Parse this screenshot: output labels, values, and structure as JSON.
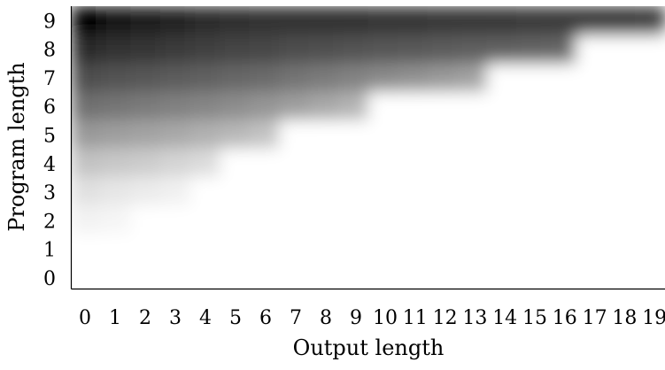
{
  "chart_data": {
    "type": "heatmap",
    "title": "",
    "xlabel": "Output length",
    "ylabel": "Program length",
    "x_categories": [
      "0",
      "1",
      "2",
      "3",
      "4",
      "5",
      "6",
      "7",
      "8",
      "9",
      "10",
      "11",
      "12",
      "13",
      "14",
      "15",
      "16",
      "17",
      "18",
      "19"
    ],
    "y_categories": [
      "0",
      "1",
      "2",
      "3",
      "4",
      "5",
      "6",
      "7",
      "8",
      "9"
    ],
    "value_range": [
      0,
      1
    ],
    "colormap": "white-to-black (darker = higher value)",
    "smoothed": true,
    "values": [
      [
        0,
        0,
        0,
        0,
        0,
        0,
        0,
        0,
        0,
        0,
        0,
        0,
        0,
        0,
        0,
        0,
        0,
        0,
        0,
        0
      ],
      [
        0,
        0,
        0,
        0,
        0,
        0,
        0,
        0,
        0,
        0,
        0,
        0,
        0,
        0,
        0,
        0,
        0,
        0,
        0,
        0
      ],
      [
        0.05,
        0.04,
        0,
        0,
        0,
        0,
        0,
        0,
        0,
        0,
        0,
        0,
        0,
        0,
        0,
        0,
        0,
        0,
        0,
        0
      ],
      [
        0.12,
        0.1,
        0.08,
        0.06,
        0,
        0,
        0,
        0,
        0,
        0,
        0,
        0,
        0,
        0,
        0,
        0,
        0,
        0,
        0,
        0
      ],
      [
        0.24,
        0.22,
        0.2,
        0.17,
        0.14,
        0,
        0,
        0,
        0,
        0,
        0,
        0,
        0,
        0,
        0,
        0,
        0,
        0,
        0,
        0
      ],
      [
        0.4,
        0.38,
        0.36,
        0.34,
        0.31,
        0.28,
        0.24,
        0,
        0,
        0,
        0,
        0,
        0,
        0,
        0,
        0,
        0,
        0,
        0,
        0
      ],
      [
        0.56,
        0.54,
        0.52,
        0.5,
        0.48,
        0.45,
        0.42,
        0.38,
        0.34,
        0.3,
        0,
        0,
        0,
        0,
        0,
        0,
        0,
        0,
        0,
        0
      ],
      [
        0.7,
        0.68,
        0.66,
        0.64,
        0.62,
        0.6,
        0.58,
        0.55,
        0.52,
        0.49,
        0.46,
        0.43,
        0.4,
        0.37,
        0,
        0,
        0,
        0,
        0,
        0
      ],
      [
        0.84,
        0.81,
        0.79,
        0.77,
        0.75,
        0.73,
        0.72,
        0.7,
        0.69,
        0.68,
        0.66,
        0.65,
        0.64,
        0.63,
        0.62,
        0.61,
        0.6,
        0,
        0,
        0
      ],
      [
        0.98,
        0.93,
        0.89,
        0.86,
        0.84,
        0.82,
        0.81,
        0.8,
        0.8,
        0.8,
        0.79,
        0.79,
        0.78,
        0.78,
        0.78,
        0.77,
        0.77,
        0.77,
        0.77,
        0.76
      ]
    ]
  }
}
